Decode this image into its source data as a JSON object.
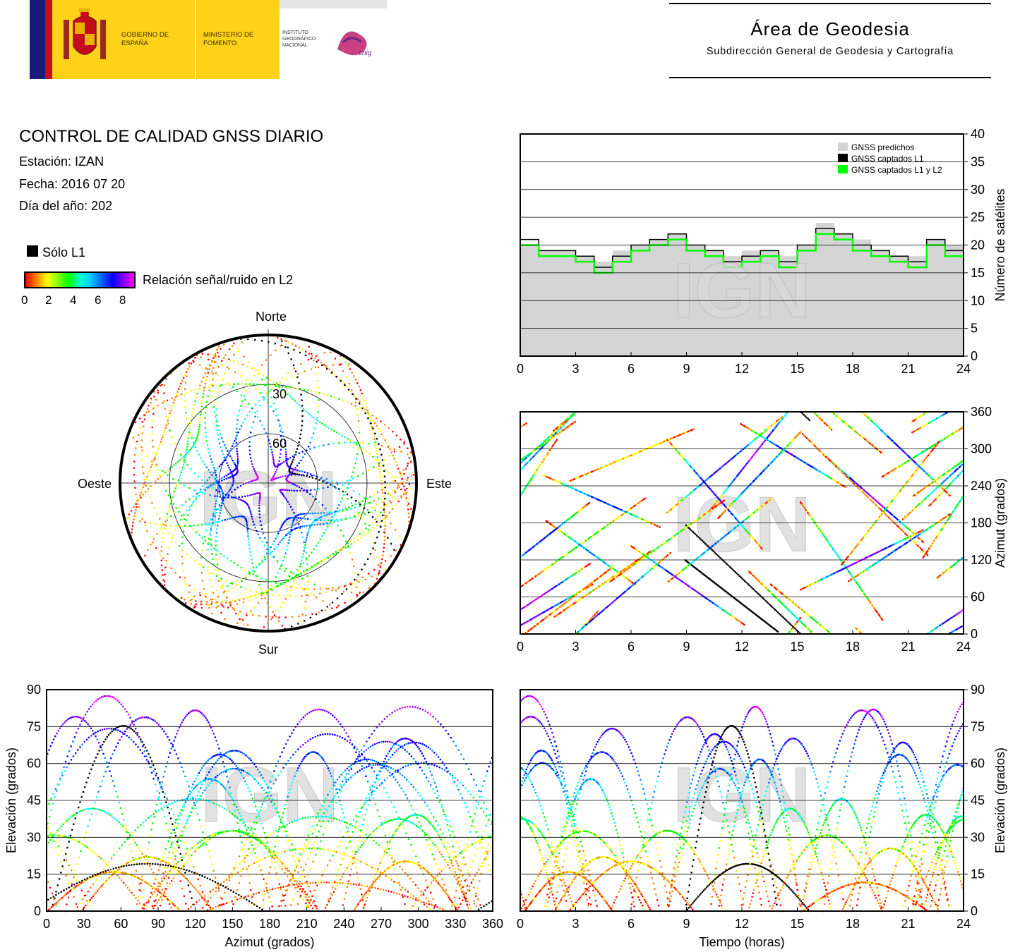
{
  "header": {
    "logo_text_gobierno": "GOBIERNO DE ESPAÑA",
    "logo_text_ministerio": "MINISTERIO DE FOMENTO",
    "logo_text_instituto": "INSTITUTO GEOGRÁFICO NACIONAL",
    "logo_text_cnig": "cnig",
    "area_title": "Área de Geodesia",
    "area_subtitle": "Subdirección General de Geodesia y Cartografía"
  },
  "report": {
    "title": "CONTROL DE CALIDAD GNSS DIARIO",
    "station": "Estación: IZAN",
    "date": "Fecha: 2016 07 20",
    "doy": "Día del año: 202"
  },
  "legend": {
    "solo_l1": "Sólo L1",
    "snr_label": "Relación señal/ruido en L2",
    "snr_ticks": [
      "0",
      "2",
      "4",
      "6",
      "8"
    ],
    "snr_colors": [
      "#ff0000",
      "#ff8000",
      "#ffff00",
      "#00ff00",
      "#00ffff",
      "#0080ff",
      "#0000ff",
      "#8000ff",
      "#ff00ff"
    ]
  },
  "watermark": "IGN",
  "chart_data": [
    {
      "id": "satellite-count",
      "type": "area",
      "ylabel": "Número de satélites",
      "xlim": [
        0,
        24
      ],
      "ylim": [
        0,
        40
      ],
      "xticks": [
        "0",
        "3",
        "6",
        "9",
        "12",
        "15",
        "18",
        "21",
        "24"
      ],
      "yticks": [
        "0",
        "5",
        "10",
        "15",
        "20",
        "25",
        "30",
        "35",
        "40"
      ],
      "grid": true,
      "legend_position": "top-right",
      "series": [
        {
          "name": "GNSS predichos",
          "color": "#d4d4d4",
          "x": [
            0,
            1,
            2,
            3,
            4,
            5,
            6,
            7,
            8,
            9,
            10,
            11,
            12,
            13,
            14,
            15,
            16,
            17,
            18,
            19,
            20,
            21,
            22,
            23,
            24
          ],
          "values": [
            20,
            19,
            19,
            18,
            17,
            19,
            20,
            21,
            22,
            20,
            19,
            18,
            19,
            19,
            18,
            20,
            24,
            22,
            21,
            19,
            18,
            18,
            21,
            20,
            19
          ]
        },
        {
          "name": "GNSS captados L1",
          "color": "#000000",
          "x": [
            0,
            1,
            2,
            3,
            4,
            5,
            6,
            7,
            8,
            9,
            10,
            11,
            12,
            13,
            14,
            15,
            16,
            17,
            18,
            19,
            20,
            21,
            22,
            23,
            24
          ],
          "values": [
            21,
            19,
            19,
            18,
            16,
            18,
            20,
            21,
            22,
            20,
            19,
            17,
            18,
            19,
            17,
            20,
            23,
            22,
            20,
            19,
            18,
            17,
            21,
            19,
            19
          ]
        },
        {
          "name": "GNSS captados L1 y L2",
          "color": "#00ff00",
          "x": [
            0,
            1,
            2,
            3,
            4,
            5,
            6,
            7,
            8,
            9,
            10,
            11,
            12,
            13,
            14,
            15,
            16,
            17,
            18,
            19,
            20,
            21,
            22,
            23,
            24
          ],
          "values": [
            20,
            18,
            18,
            17,
            15,
            17,
            19,
            20,
            21,
            19,
            18,
            16,
            17,
            18,
            16,
            19,
            22,
            21,
            19,
            18,
            17,
            16,
            20,
            18,
            18
          ]
        }
      ]
    },
    {
      "id": "azimuth-vs-time",
      "type": "scatter",
      "ylabel": "Azimut (grados)",
      "xlim": [
        0,
        24
      ],
      "ylim": [
        0,
        360
      ],
      "xticks": [
        "0",
        "3",
        "6",
        "9",
        "12",
        "15",
        "18",
        "21",
        "24"
      ],
      "yticks": [
        "0",
        "60",
        "120",
        "180",
        "240",
        "300",
        "360"
      ],
      "grid": true
    },
    {
      "id": "elevation-vs-azimuth",
      "type": "scatter",
      "xlabel": "Azimut (grados)",
      "ylabel": "Elevación (grados)",
      "xlim": [
        0,
        360
      ],
      "ylim": [
        0,
        90
      ],
      "xticks": [
        "0",
        "30",
        "60",
        "90",
        "120",
        "150",
        "180",
        "210",
        "240",
        "270",
        "300",
        "330",
        "360"
      ],
      "yticks": [
        "0",
        "15",
        "30",
        "45",
        "60",
        "75",
        "90"
      ],
      "grid": true
    },
    {
      "id": "elevation-vs-time",
      "type": "scatter",
      "xlabel": "Tiempo (horas)",
      "ylabel": "Elevación (grados)",
      "xlim": [
        0,
        24
      ],
      "ylim": [
        0,
        90
      ],
      "xticks": [
        "0",
        "3",
        "6",
        "9",
        "12",
        "15",
        "18",
        "21",
        "24"
      ],
      "yticks": [
        "0",
        "15",
        "30",
        "45",
        "60",
        "75",
        "90"
      ],
      "grid": true
    },
    {
      "id": "skyplot",
      "type": "scatter",
      "cardinals": {
        "north": "Norte",
        "south": "Sur",
        "east": "Este",
        "west": "Oeste"
      },
      "rings": [
        "30",
        "60"
      ]
    }
  ]
}
